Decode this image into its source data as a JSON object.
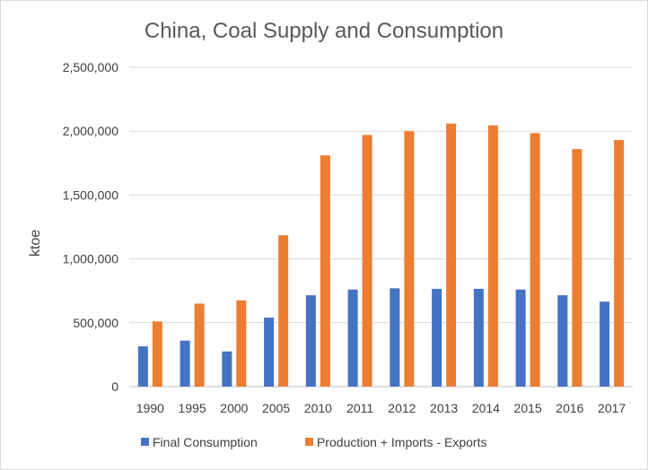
{
  "chart_data": {
    "type": "bar",
    "title": "China, Coal Supply and Consumption",
    "ylabel": "ktoe",
    "xlabel": "",
    "categories": [
      "1990",
      "1995",
      "2000",
      "2005",
      "2010",
      "2011",
      "2012",
      "2013",
      "2014",
      "2015",
      "2016",
      "2017"
    ],
    "ylim": [
      0,
      2500000
    ],
    "yticks": [
      0,
      500000,
      1000000,
      1500000,
      2000000,
      2500000
    ],
    "ytick_labels": [
      "0",
      "500,000",
      "1,000,000",
      "1,500,000",
      "2,000,000",
      "2,500,000"
    ],
    "grid": true,
    "legend_position": "bottom",
    "series": [
      {
        "name": "Final Consumption",
        "color": "#4472c4",
        "values": [
          315000,
          360000,
          275000,
          540000,
          715000,
          760000,
          770000,
          765000,
          765000,
          760000,
          715000,
          665000
        ]
      },
      {
        "name": "Production + Imports - Exports",
        "color": "#ed7d31",
        "values": [
          510000,
          650000,
          675000,
          1185000,
          1810000,
          1970000,
          2000000,
          2060000,
          2045000,
          1985000,
          1860000,
          1930000
        ]
      }
    ]
  }
}
